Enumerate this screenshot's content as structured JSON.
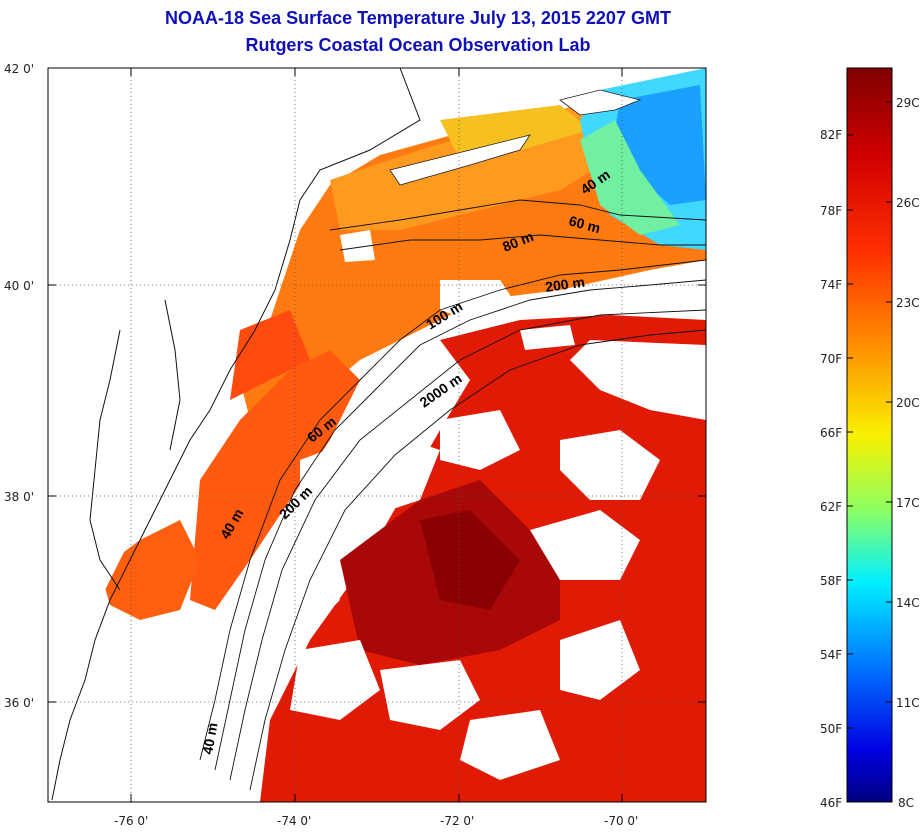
{
  "title": {
    "line1": "NOAA-18 Sea Surface Temperature July 13, 2015 2207 GMT",
    "line2": "Rutgers Coastal Ocean Observation Lab"
  },
  "map": {
    "lat_labels": [
      "42 0'",
      "40 0'",
      "38 0'",
      "36 0'"
    ],
    "lon_labels": [
      "-76 0'",
      "-74 0'",
      "-72 0'",
      "-70 0'"
    ],
    "contours": [
      "40 m",
      "60 m",
      "80 m",
      "200 m",
      "100 m",
      "2000 m",
      "60 m",
      "200 m",
      "40 m",
      "40 m"
    ],
    "land_color": "#ffffff",
    "cloud_color": "#ffffff"
  },
  "colorbar": {
    "fahrenheit": [
      "82F",
      "78F",
      "74F",
      "70F",
      "66F",
      "62F",
      "58F",
      "54F",
      "50F",
      "46F"
    ],
    "celsius": [
      "29C",
      "26C",
      "23C",
      "20C",
      "17C",
      "14C",
      "11C",
      "8C"
    ],
    "colors": [
      "#7f0000",
      "#ff0000",
      "#ff8000",
      "#ffff00",
      "#80ff80",
      "#00ffff",
      "#0080ff",
      "#0000ff",
      "#00008f"
    ]
  }
}
